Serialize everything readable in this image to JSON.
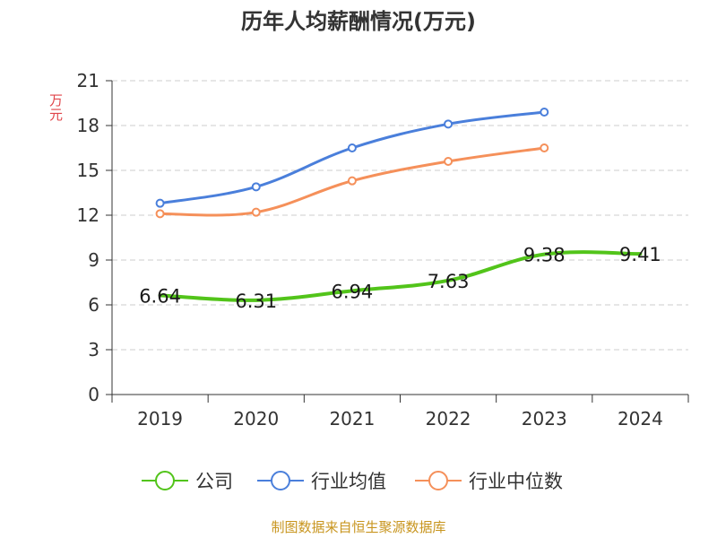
{
  "chart_data": {
    "type": "line",
    "title": "历年人均薪酬情况(万元)",
    "ylabel": "万元",
    "categories": [
      "2019",
      "2020",
      "2021",
      "2022",
      "2023",
      "2024"
    ],
    "ylim": [
      0,
      21
    ],
    "yticks": [
      "0",
      "3",
      "6",
      "9",
      "12",
      "15",
      "18",
      "21"
    ],
    "grid": true,
    "legend_position": "bottom",
    "series": [
      {
        "name": "公司",
        "color": "#52c41a",
        "values": [
          6.64,
          6.31,
          6.94,
          7.63,
          9.38,
          9.41
        ],
        "labels": [
          "6.64",
          "6.31",
          "6.94",
          "7.63",
          "9.38",
          "9.41"
        ],
        "smooth": true,
        "markers": false
      },
      {
        "name": "行业均值",
        "color": "#4a7fdb",
        "values": [
          12.8,
          13.9,
          16.5,
          18.1,
          18.9,
          null
        ],
        "markers": true
      },
      {
        "name": "行业中位数",
        "color": "#f5905a",
        "values": [
          12.1,
          12.2,
          14.3,
          15.6,
          16.5,
          null
        ],
        "markers": true
      }
    ]
  },
  "footer": {
    "source": "制图数据来自恒生聚源数据库"
  }
}
